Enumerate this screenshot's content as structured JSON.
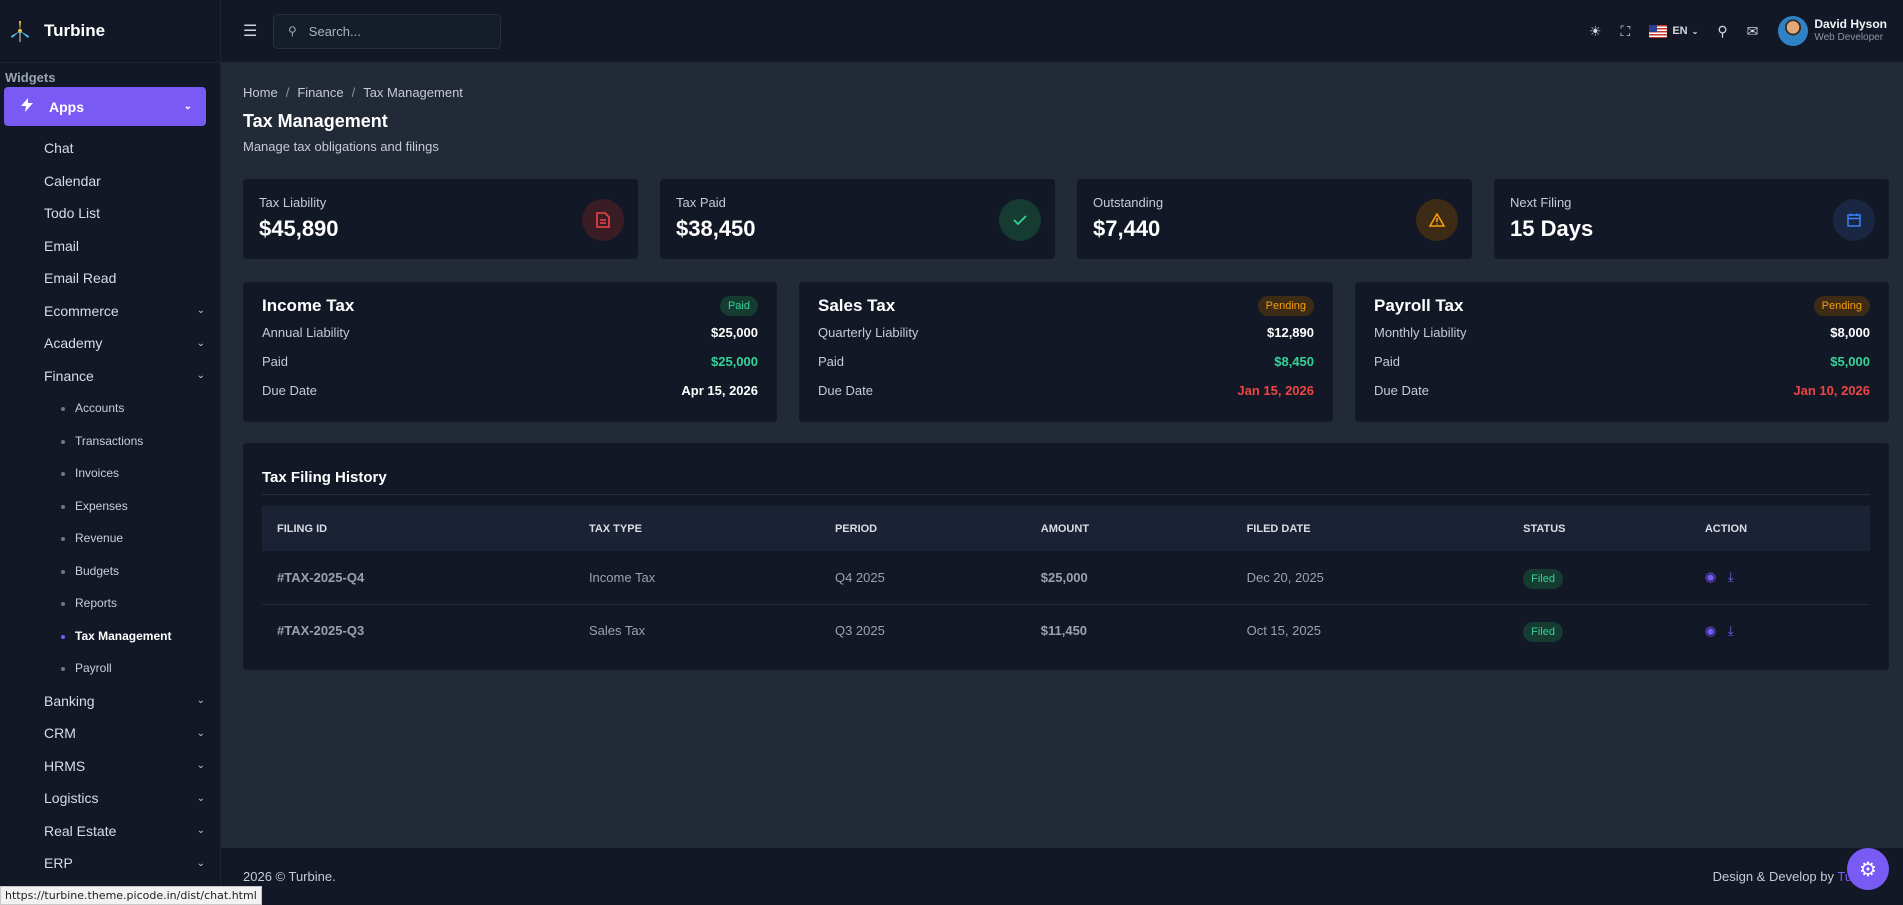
{
  "brand": {
    "name": "Turbine"
  },
  "sidebar": {
    "section_label": "Widgets",
    "apps_label": "Apps",
    "items": [
      {
        "label": "Chat"
      },
      {
        "label": "Calendar"
      },
      {
        "label": "Todo List"
      },
      {
        "label": "Email"
      },
      {
        "label": "Email Read"
      },
      {
        "label": "Ecommerce"
      },
      {
        "label": "Academy"
      },
      {
        "label": "Finance"
      }
    ],
    "finance_sub": [
      {
        "label": "Accounts"
      },
      {
        "label": "Transactions"
      },
      {
        "label": "Invoices"
      },
      {
        "label": "Expenses"
      },
      {
        "label": "Revenue"
      },
      {
        "label": "Budgets"
      },
      {
        "label": "Reports"
      },
      {
        "label": "Tax Management"
      },
      {
        "label": "Payroll"
      }
    ],
    "more_items": [
      {
        "label": "Banking"
      },
      {
        "label": "CRM"
      },
      {
        "label": "HRMS"
      },
      {
        "label": "Logistics"
      },
      {
        "label": "Real Estate"
      },
      {
        "label": "ERP"
      }
    ]
  },
  "topbar": {
    "search_placeholder": "Search...",
    "language": "EN",
    "user_name": "David Hyson",
    "user_role": "Web Developer"
  },
  "breadcrumb": [
    "Home",
    "Finance",
    "Tax Management"
  ],
  "page": {
    "title": "Tax Management",
    "subtitle": "Manage tax obligations and filings"
  },
  "stats": [
    {
      "label": "Tax Liability",
      "value": "$45,890",
      "icon": "document-icon",
      "color": "#ef4444"
    },
    {
      "label": "Tax Paid",
      "value": "$38,450",
      "icon": "check-icon",
      "color": "#34d399"
    },
    {
      "label": "Outstanding",
      "value": "$7,440",
      "icon": "warning-icon",
      "color": "#f59e0b"
    },
    {
      "label": "Next Filing",
      "value": "15 Days",
      "icon": "calendar-icon",
      "color": "#3b82f6"
    }
  ],
  "tax_cards": [
    {
      "title": "Income Tax",
      "badge": "Paid",
      "liability_label": "Annual Liability",
      "liability": "$25,000",
      "paid_label": "Paid",
      "paid": "$25,000",
      "due_label": "Due Date",
      "due": "Apr 15, 2026"
    },
    {
      "title": "Sales Tax",
      "badge": "Pending",
      "liability_label": "Quarterly Liability",
      "liability": "$12,890",
      "paid_label": "Paid",
      "paid": "$8,450",
      "due_label": "Due Date",
      "due": "Jan 15, 2026"
    },
    {
      "title": "Payroll Tax",
      "badge": "Pending",
      "liability_label": "Monthly Liability",
      "liability": "$8,000",
      "paid_label": "Paid",
      "paid": "$5,000",
      "due_label": "Due Date",
      "due": "Jan 10, 2026"
    }
  ],
  "history": {
    "title": "Tax Filing History",
    "columns": [
      "FILING ID",
      "TAX TYPE",
      "PERIOD",
      "AMOUNT",
      "FILED DATE",
      "STATUS",
      "ACTION"
    ],
    "rows": [
      {
        "id": "#TAX-2025-Q4",
        "type": "Income Tax",
        "period": "Q4 2025",
        "amount": "$25,000",
        "filed": "Dec 20, 2025",
        "status": "Filed"
      },
      {
        "id": "#TAX-2025-Q3",
        "type": "Sales Tax",
        "period": "Q3 2025",
        "amount": "$11,450",
        "filed": "Oct 15, 2025",
        "status": "Filed"
      }
    ]
  },
  "footer": {
    "copyright": "2026 © Turbine.",
    "credit_prefix": "Design & Develop by",
    "credit_brand": "Turbine"
  },
  "status_url": "https://turbine.theme.picode.in/dist/chat.html",
  "colors": {
    "accent": "#7a5af5",
    "success": "#34d399",
    "danger": "#ef4444",
    "warning": "#f59e0b"
  }
}
